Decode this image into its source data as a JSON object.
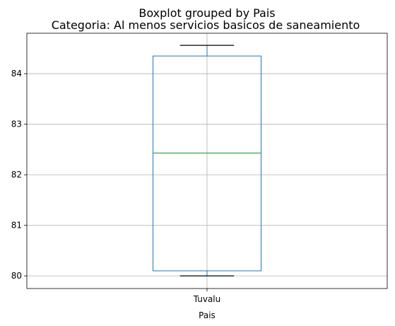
{
  "chart_data": {
    "type": "boxplot",
    "title": "Boxplot grouped by Pais",
    "subtitle": "Categoria: Al menos servicios basicos de saneamiento",
    "xlabel": "Pais",
    "ylabel": "",
    "categories": [
      "Tuvalu"
    ],
    "boxes": [
      {
        "category": "Tuvalu",
        "whisker_low": 80.0,
        "q1": 80.1,
        "median": 82.43,
        "q3": 84.35,
        "whisker_high": 84.56
      }
    ],
    "ylim": [
      79.75,
      84.8
    ],
    "yticks": [
      80,
      81,
      82,
      83,
      84
    ],
    "grid": true,
    "colors": {
      "box": "#1f77b4",
      "median": "#2ca02c",
      "whisker": "#000000",
      "grid": "#b0b0b0"
    }
  }
}
